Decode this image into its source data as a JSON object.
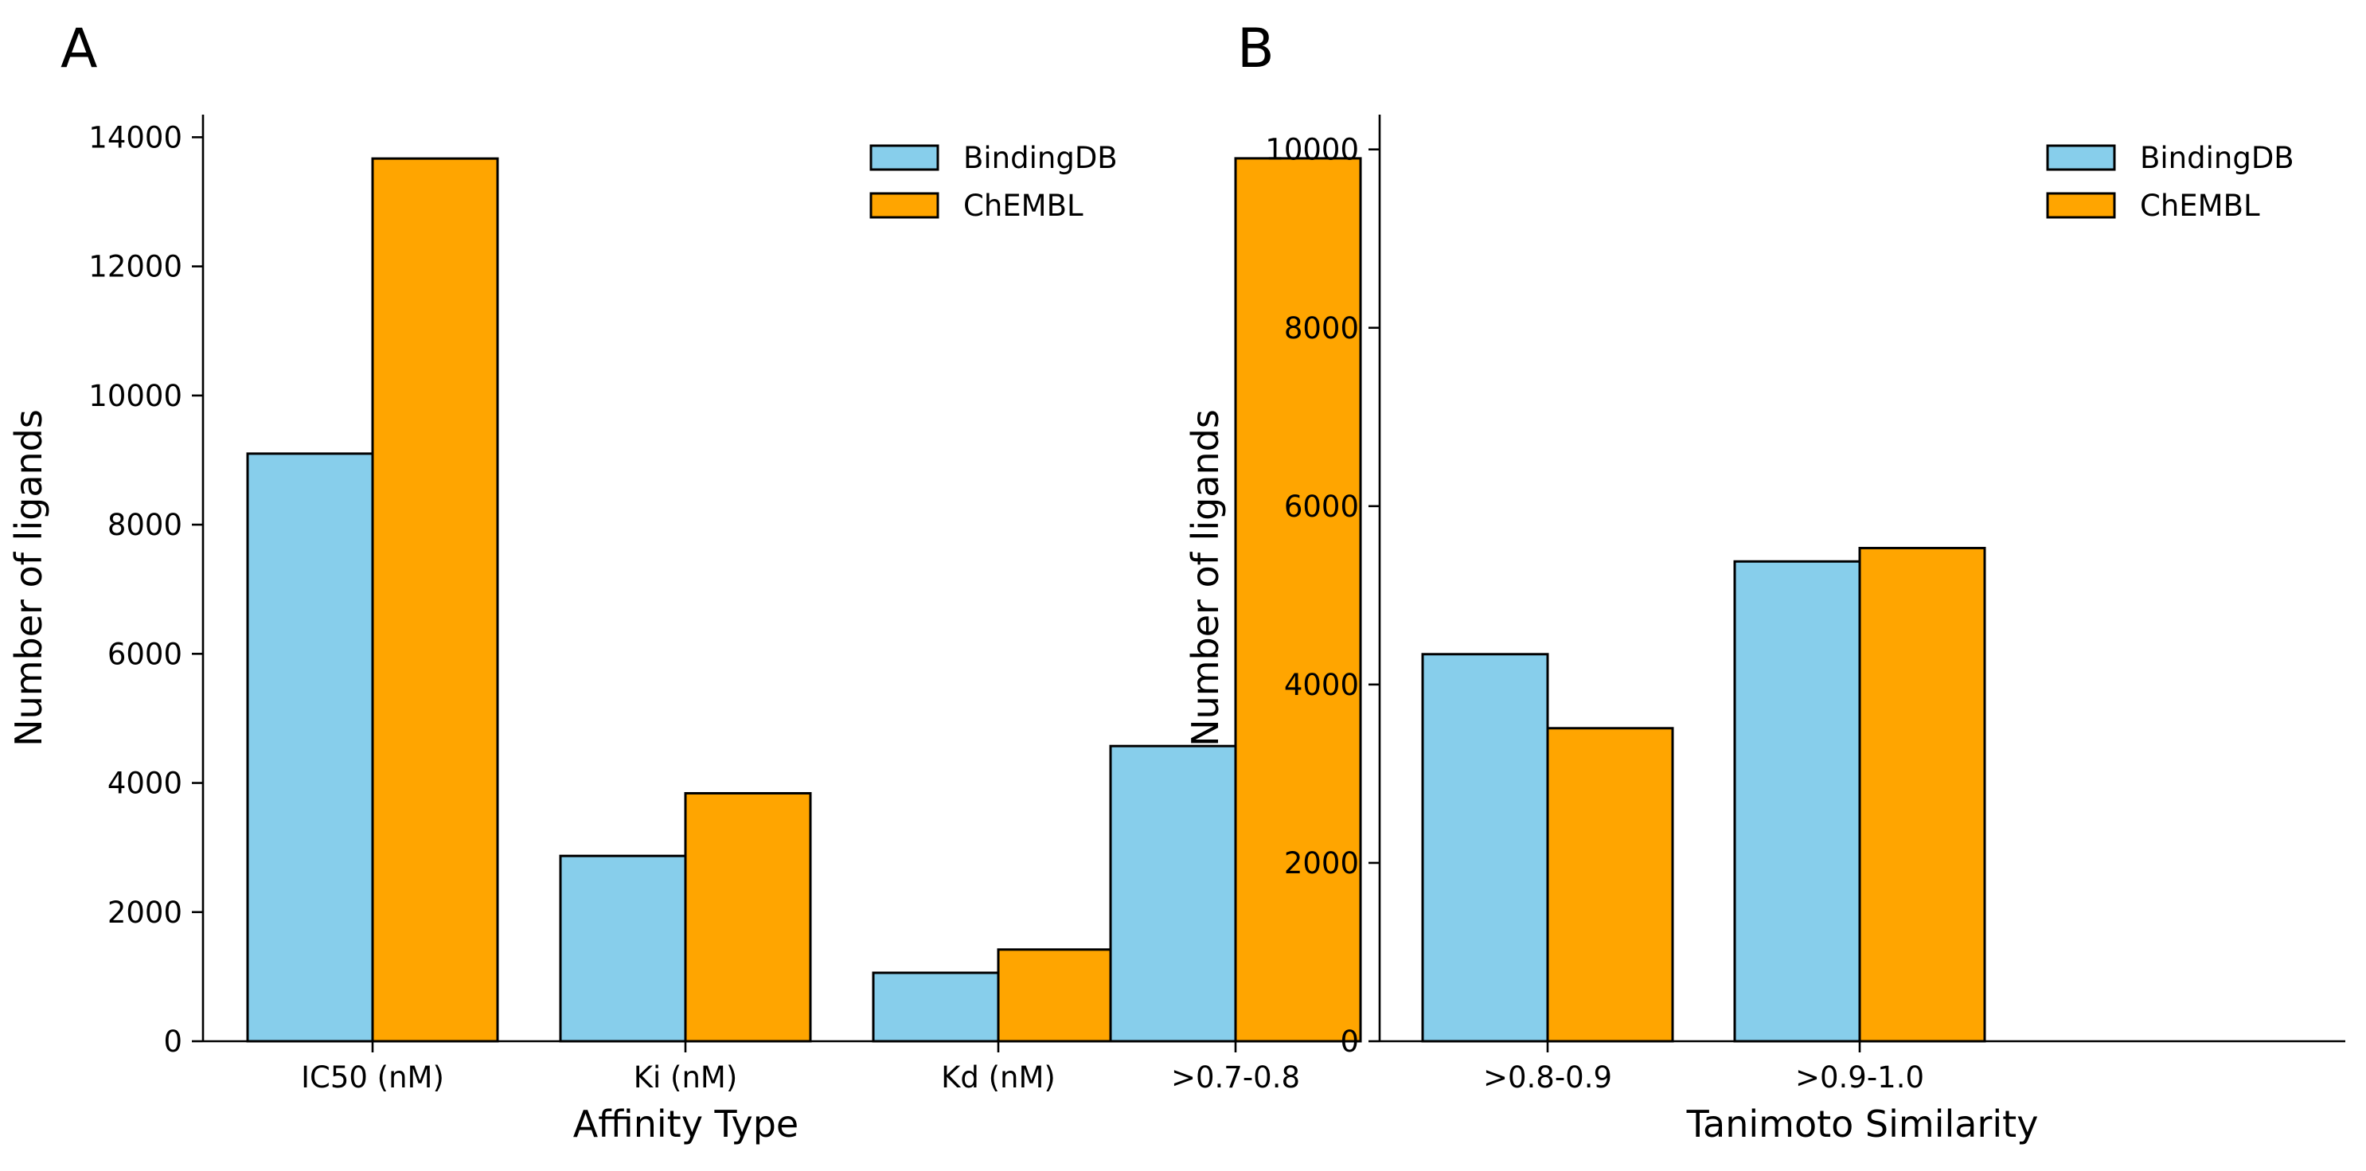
{
  "chart_data": [
    {
      "type": "bar",
      "panel": "A",
      "title": "",
      "xlabel": "Affinity Type",
      "ylabel": "Number of ligands",
      "categories": [
        "IC50 (nM)",
        "Ki (nM)",
        "Kd (nM)"
      ],
      "series": [
        {
          "name": "BindingDB",
          "values": [
            9100,
            2870,
            1060
          ],
          "color": "#87CEEB"
        },
        {
          "name": "ChEMBL",
          "values": [
            13670,
            3840,
            1420
          ],
          "color": "#FFA500"
        }
      ],
      "ylim": [
        0,
        14350
      ],
      "yticks": [
        0,
        2000,
        4000,
        6000,
        8000,
        10000,
        12000,
        14000
      ],
      "grid": false,
      "legend": "top-right"
    },
    {
      "type": "bar",
      "panel": "B",
      "title": "",
      "xlabel": "Tanimoto Similarity",
      "ylabel": "Number of ligands",
      "categories": [
        ">0.7-0.8",
        ">0.8-0.9",
        ">0.9-1.0"
      ],
      "series": [
        {
          "name": "BindingDB",
          "values": [
            3310,
            4340,
            5380
          ],
          "color": "#87CEEB"
        },
        {
          "name": "ChEMBL",
          "values": [
            9900,
            3510,
            5530
          ],
          "color": "#FFA500"
        }
      ],
      "ylim": [
        0,
        10390
      ],
      "yticks": [
        0,
        2000,
        4000,
        6000,
        8000,
        10000
      ],
      "grid": false,
      "legend": "top-right"
    }
  ]
}
